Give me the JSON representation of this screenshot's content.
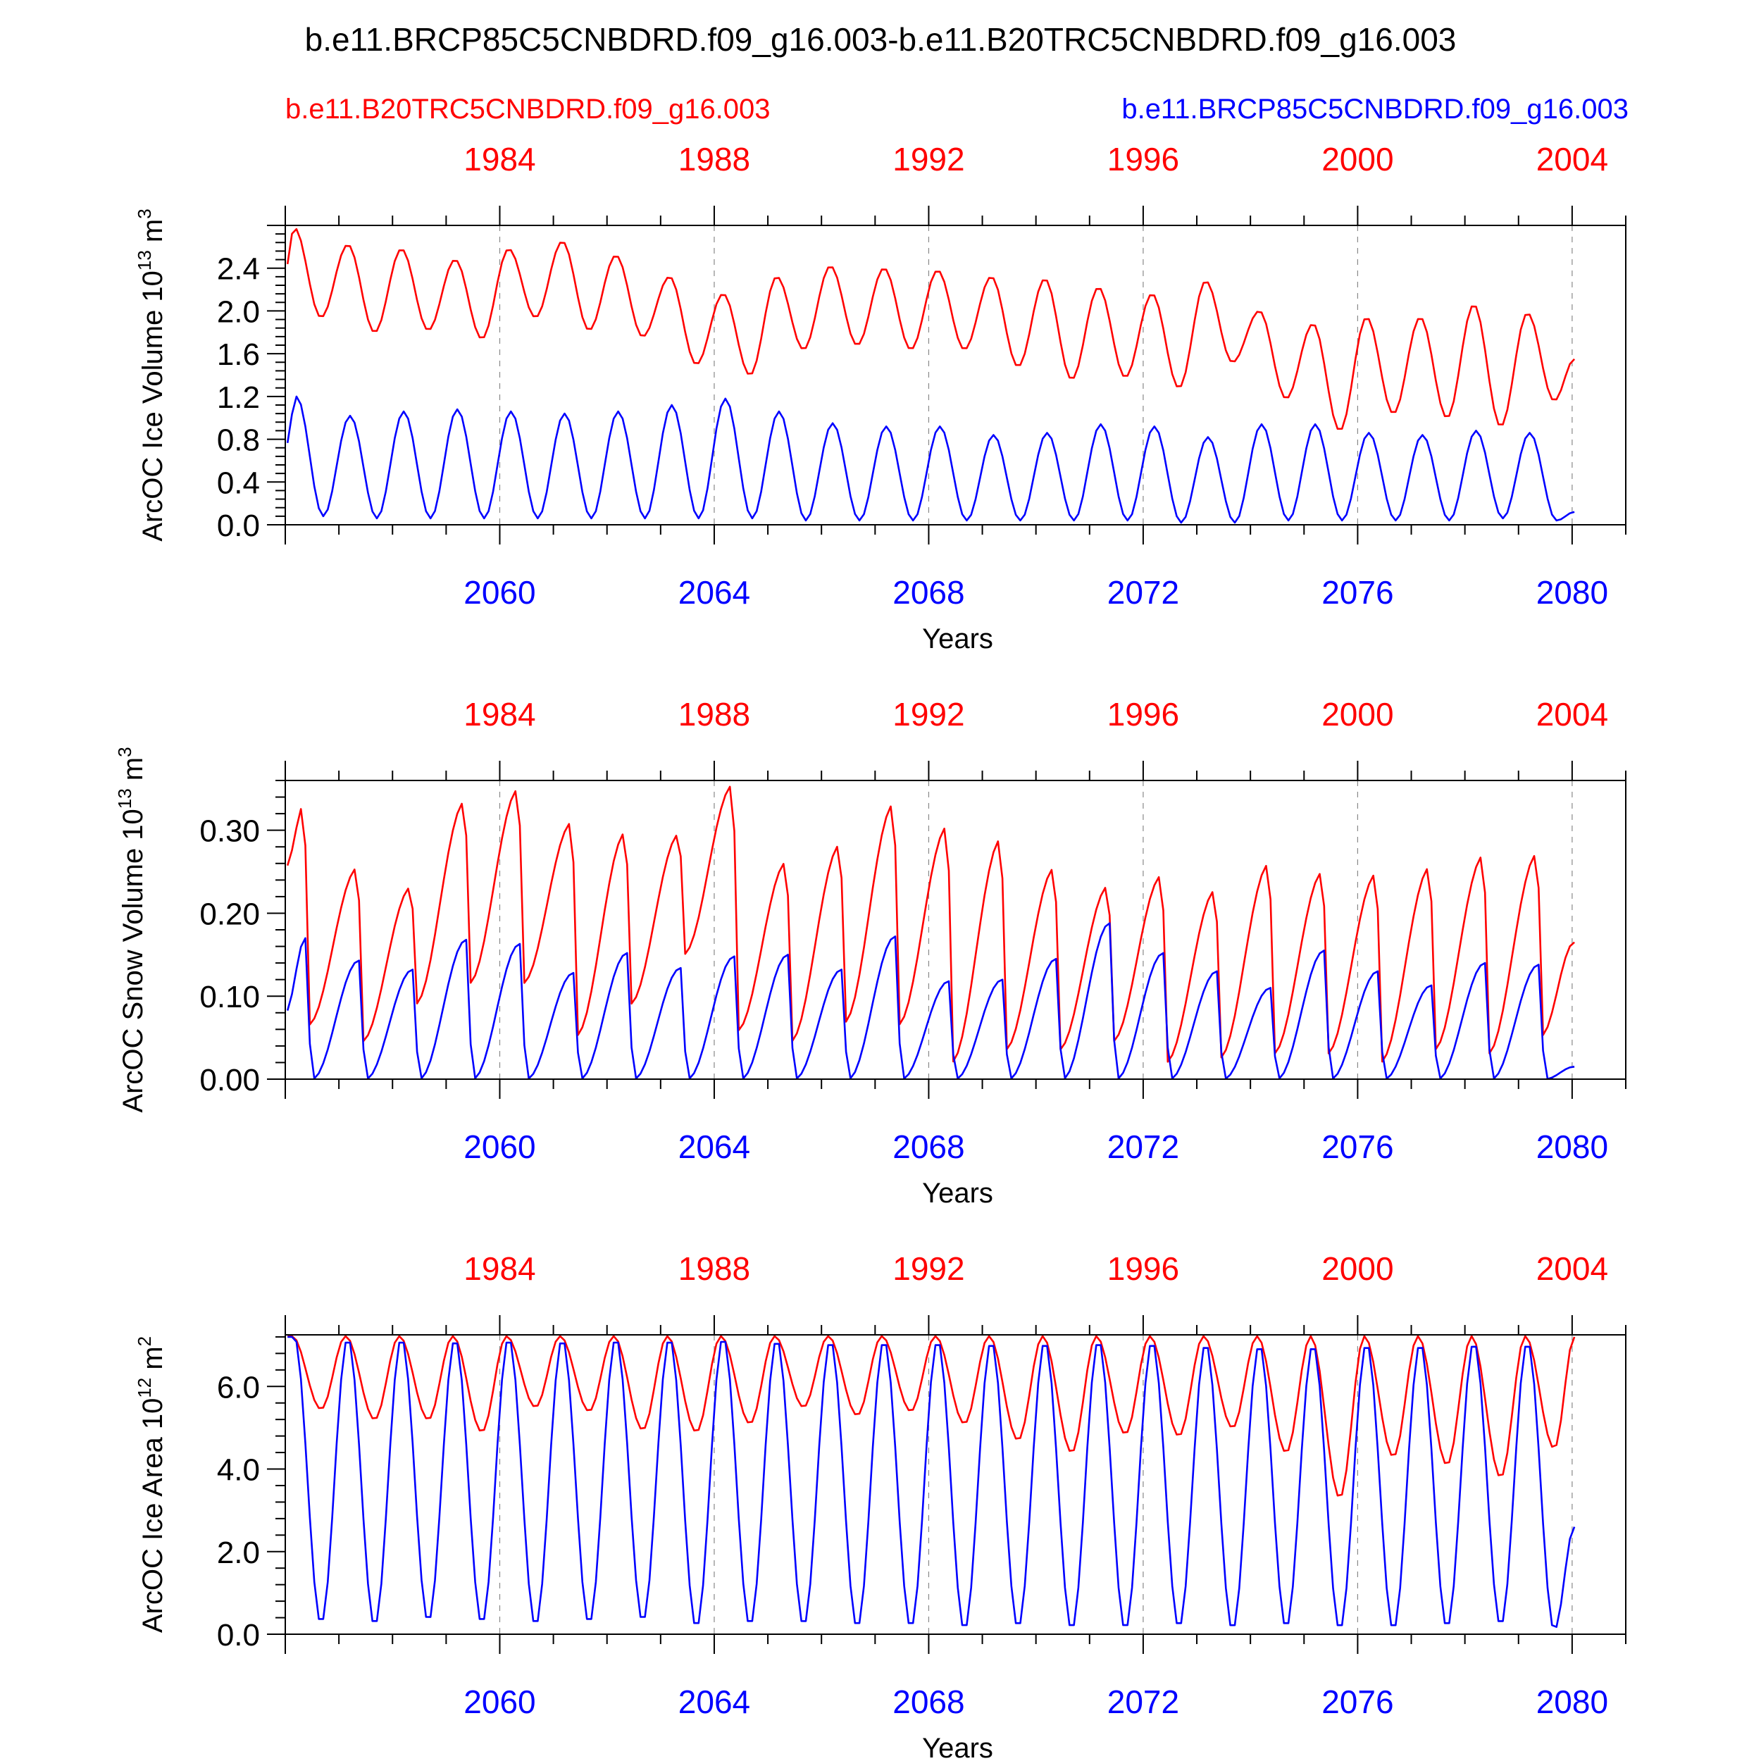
{
  "chart_data": {
    "title": "b.e11.BRCP85C5CNBDRD.f09_g16.003-b.e11.B20TRC5CNBDRD.f09_g16.003",
    "legend": {
      "left": {
        "label": "b.e11.B20TRC5CNBDRD.f09_g16.003",
        "color": "#ff0000"
      },
      "right": {
        "label": "b.e11.BRCP85C5CNBDRD.f09_g16.003",
        "color": "#0000ff"
      }
    },
    "x_range": [
      2056,
      2081
    ],
    "top_axis_offset_years": -76,
    "top_tick_labels": [
      "1984",
      "1988",
      "1992",
      "1996",
      "2000",
      "2004"
    ],
    "bottom_tick_labels": [
      "2060",
      "2064",
      "2068",
      "2072",
      "2076",
      "2080"
    ],
    "panels": [
      {
        "type": "line",
        "ylabel": "ArcOC Ice Volume 10",
        "yexp": "13",
        "yunit": " m",
        "yunit_exp": "3",
        "xlabel": "Years",
        "ylim": [
          0.0,
          2.8
        ],
        "yticks": [
          "0.0",
          "0.4",
          "0.8",
          "1.2",
          "1.6",
          "2.0",
          "2.4"
        ],
        "series": [
          {
            "name": "b.e11.B20TRC5CNBDRD.f09_g16.003",
            "color": "#ff0000",
            "annual_max": [
              2.78,
              2.62,
              2.58,
              2.48,
              2.58,
              2.65,
              2.52,
              2.32,
              2.16,
              2.32,
              2.42,
              2.4,
              2.38,
              2.32,
              2.3,
              2.22,
              2.16,
              2.28,
              2.0,
              1.88,
              1.94,
              1.94,
              2.06,
              1.98
            ],
            "annual_min": [
              1.94,
              1.8,
              1.82,
              1.74,
              1.94,
              1.82,
              1.76,
              1.5,
              1.4,
              1.64,
              1.68,
              1.64,
              1.64,
              1.48,
              1.36,
              1.38,
              1.28,
              1.52,
              1.18,
              0.88,
              1.04,
              1.0,
              0.92,
              1.16
            ]
          },
          {
            "name": "b.e11.BRCP85C5CNBDRD.f09_g16.003",
            "color": "#0000ff",
            "annual_max": [
              1.2,
              1.02,
              1.06,
              1.08,
              1.06,
              1.04,
              1.06,
              1.12,
              1.18,
              1.06,
              0.95,
              0.92,
              0.92,
              0.84,
              0.86,
              0.94,
              0.92,
              0.82,
              0.94,
              0.94,
              0.86,
              0.84,
              0.88,
              0.86
            ],
            "annual_min": [
              0.08,
              0.06,
              0.06,
              0.06,
              0.06,
              0.06,
              0.06,
              0.06,
              0.06,
              0.04,
              0.04,
              0.04,
              0.04,
              0.04,
              0.04,
              0.04,
              0.02,
              0.02,
              0.04,
              0.04,
              0.04,
              0.04,
              0.06,
              0.04
            ]
          }
        ]
      },
      {
        "type": "line",
        "ylabel": "ArcOC Snow Volume 10",
        "yexp": "13",
        "yunit": " m",
        "yunit_exp": "3",
        "xlabel": "Years",
        "ylim": [
          0.0,
          0.36
        ],
        "yticks": [
          "0.00",
          "0.10",
          "0.20",
          "0.30"
        ],
        "series": [
          {
            "name": "b.e11.B20TRC5CNBDRD.f09_g16.003",
            "color": "#ff0000",
            "annual_max": [
              0.332,
              0.255,
              0.232,
              0.335,
              0.35,
              0.31,
              0.298,
              0.296,
              0.355,
              0.262,
              0.283,
              0.332,
              0.305,
              0.29,
              0.255,
              0.233,
              0.246,
              0.228,
              0.26,
              0.25,
              0.248,
              0.256,
              0.27,
              0.272
            ],
            "annual_min": [
              0.065,
              0.045,
              0.09,
              0.115,
              0.115,
              0.052,
              0.09,
              0.15,
              0.058,
              0.045,
              0.068,
              0.065,
              0.02,
              0.035,
              0.035,
              0.045,
              0.02,
              0.025,
              0.03,
              0.03,
              0.02,
              0.035,
              0.03,
              0.052
            ]
          },
          {
            "name": "b.e11.BRCP85C5CNBDRD.f09_g16.003",
            "color": "#0000ff",
            "annual_max": [
              0.17,
              0.143,
              0.132,
              0.168,
              0.163,
              0.128,
              0.152,
              0.134,
              0.148,
              0.15,
              0.132,
              0.172,
              0.118,
              0.12,
              0.145,
              0.188,
              0.152,
              0.13,
              0.11,
              0.155,
              0.13,
              0.113,
              0.14,
              0.138
            ],
            "annual_min": [
              0.0,
              0.0,
              0.0,
              0.0,
              0.0,
              0.0,
              0.0,
              0.0,
              0.0,
              0.0,
              0.0,
              0.0,
              0.0,
              0.0,
              0.0,
              0.0,
              0.0,
              0.0,
              0.0,
              0.0,
              0.0,
              0.0,
              0.0,
              0.0
            ]
          }
        ]
      },
      {
        "type": "line",
        "ylabel": "ArcOC Ice Area 10",
        "yexp": "12",
        "yunit": " m",
        "yunit_exp": "2",
        "xlabel": "Years",
        "ylim": [
          0.0,
          7.25
        ],
        "yticks": [
          "0.0",
          "2.0",
          "4.0",
          "6.0"
        ],
        "series": [
          {
            "name": "b.e11.B20TRC5CNBDRD.f09_g16.003",
            "color": "#ff0000",
            "annual_max": [
              7.22,
              7.22,
              7.22,
              7.22,
              7.22,
              7.22,
              7.22,
              7.22,
              7.22,
              7.22,
              7.22,
              7.22,
              7.22,
              7.22,
              7.22,
              7.22,
              7.22,
              7.22,
              7.22,
              7.22,
              7.22,
              7.22,
              7.22,
              7.22
            ],
            "annual_min": [
              5.45,
              5.2,
              5.2,
              4.9,
              5.5,
              5.4,
              4.95,
              4.9,
              5.1,
              5.5,
              5.3,
              5.4,
              5.1,
              4.7,
              4.4,
              4.85,
              4.8,
              5.0,
              4.4,
              3.3,
              4.3,
              4.1,
              3.8,
              4.5
            ]
          },
          {
            "name": "b.e11.BRCP85C5CNBDRD.f09_g16.003",
            "color": "#0000ff",
            "annual_max": [
              7.2,
              7.18,
              7.18,
              7.16,
              7.18,
              7.16,
              7.18,
              7.18,
              7.2,
              7.15,
              7.12,
              7.12,
              7.12,
              7.1,
              7.1,
              7.12,
              7.1,
              7.05,
              7.02,
              7.02,
              7.05,
              7.05,
              7.08,
              7.08
            ],
            "annual_min": [
              0.25,
              0.2,
              0.3,
              0.25,
              0.2,
              0.25,
              0.3,
              0.15,
              0.2,
              0.2,
              0.15,
              0.15,
              0.1,
              0.15,
              0.1,
              0.1,
              0.15,
              0.1,
              0.15,
              0.1,
              0.1,
              0.15,
              0.2,
              0.1
            ]
          }
        ]
      }
    ]
  }
}
